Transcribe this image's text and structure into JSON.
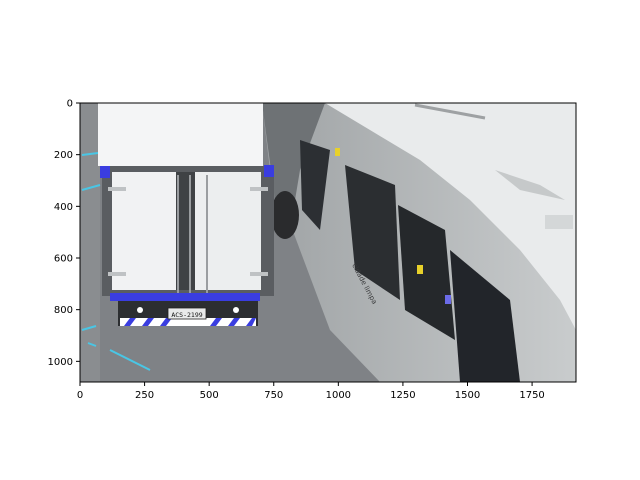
{
  "image": {
    "description_free": true,
    "plate_text": "ACS-2199",
    "bus_side_text": "cidade limpa",
    "colors": {
      "road": "#7f8286",
      "truck_body": "#f4f5f6",
      "bus_body": "#b9bcbd",
      "bus_roof": "#e9ebec",
      "accent_blue": "#3a3de0",
      "lane_marks": "#49c6e5"
    }
  },
  "axes": {
    "x_ticks": [
      "0",
      "250",
      "500",
      "750",
      "1000",
      "1250",
      "1500",
      "1750"
    ],
    "y_ticks": [
      "0",
      "200",
      "400",
      "600",
      "800",
      "1000"
    ]
  }
}
